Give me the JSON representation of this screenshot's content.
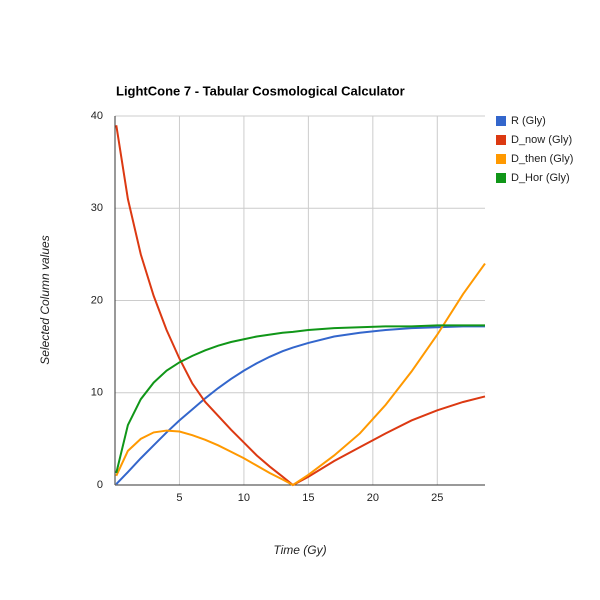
{
  "chart_data": {
    "type": "line",
    "title": "LightCone 7 - Tabular Cosmological Calculator",
    "x_label": "Time (Gy)",
    "y_label": "Selected Column values",
    "x": [
      0.1,
      1,
      2,
      3,
      4,
      5,
      6,
      7,
      8,
      9,
      10,
      11,
      12,
      13,
      13.8,
      15,
      17,
      19,
      21,
      23,
      25,
      27,
      28.7
    ],
    "series": [
      {
        "name": "R (Gly)",
        "color": "#3366cc",
        "values": [
          0.1,
          1.4,
          2.9,
          4.3,
          5.7,
          7,
          8.2,
          9.4,
          10.5,
          11.5,
          12.4,
          13.2,
          13.9,
          14.5,
          14.9,
          15.4,
          16.1,
          16.5,
          16.8,
          17,
          17.1,
          17.2,
          17.2
        ]
      },
      {
        "name": "D_now (Gly)",
        "color": "#dc3912",
        "values": [
          39,
          31,
          25,
          20.5,
          16.8,
          13.7,
          11,
          9,
          7.5,
          6,
          4.6,
          3.2,
          2,
          0.9,
          0,
          0.9,
          2.6,
          4.1,
          5.6,
          7,
          8.1,
          9,
          9.6
        ]
      },
      {
        "name": "D_then (Gly)",
        "color": "#ff9900",
        "values": [
          1,
          3.7,
          5,
          5.7,
          5.9,
          5.8,
          5.4,
          4.9,
          4.3,
          3.6,
          2.9,
          2.1,
          1.3,
          0.6,
          0,
          1.1,
          3.2,
          5.6,
          8.7,
          12.3,
          16.3,
          20.7,
          24
        ]
      },
      {
        "name": "D_Hor (Gly)",
        "color": "#109618",
        "values": [
          1.3,
          6.5,
          9.3,
          11.1,
          12.4,
          13.3,
          14,
          14.6,
          15.1,
          15.5,
          15.8,
          16.1,
          16.3,
          16.5,
          16.6,
          16.8,
          17,
          17.1,
          17.2,
          17.2,
          17.3,
          17.3,
          17.3
        ]
      }
    ],
    "xlim": [
      0,
      28.7
    ],
    "xticks": [
      5,
      10,
      15,
      20,
      25
    ],
    "ylim": [
      0,
      40
    ],
    "yticks": [
      0,
      10,
      20,
      30,
      40
    ],
    "grid": true,
    "legend": "right"
  }
}
